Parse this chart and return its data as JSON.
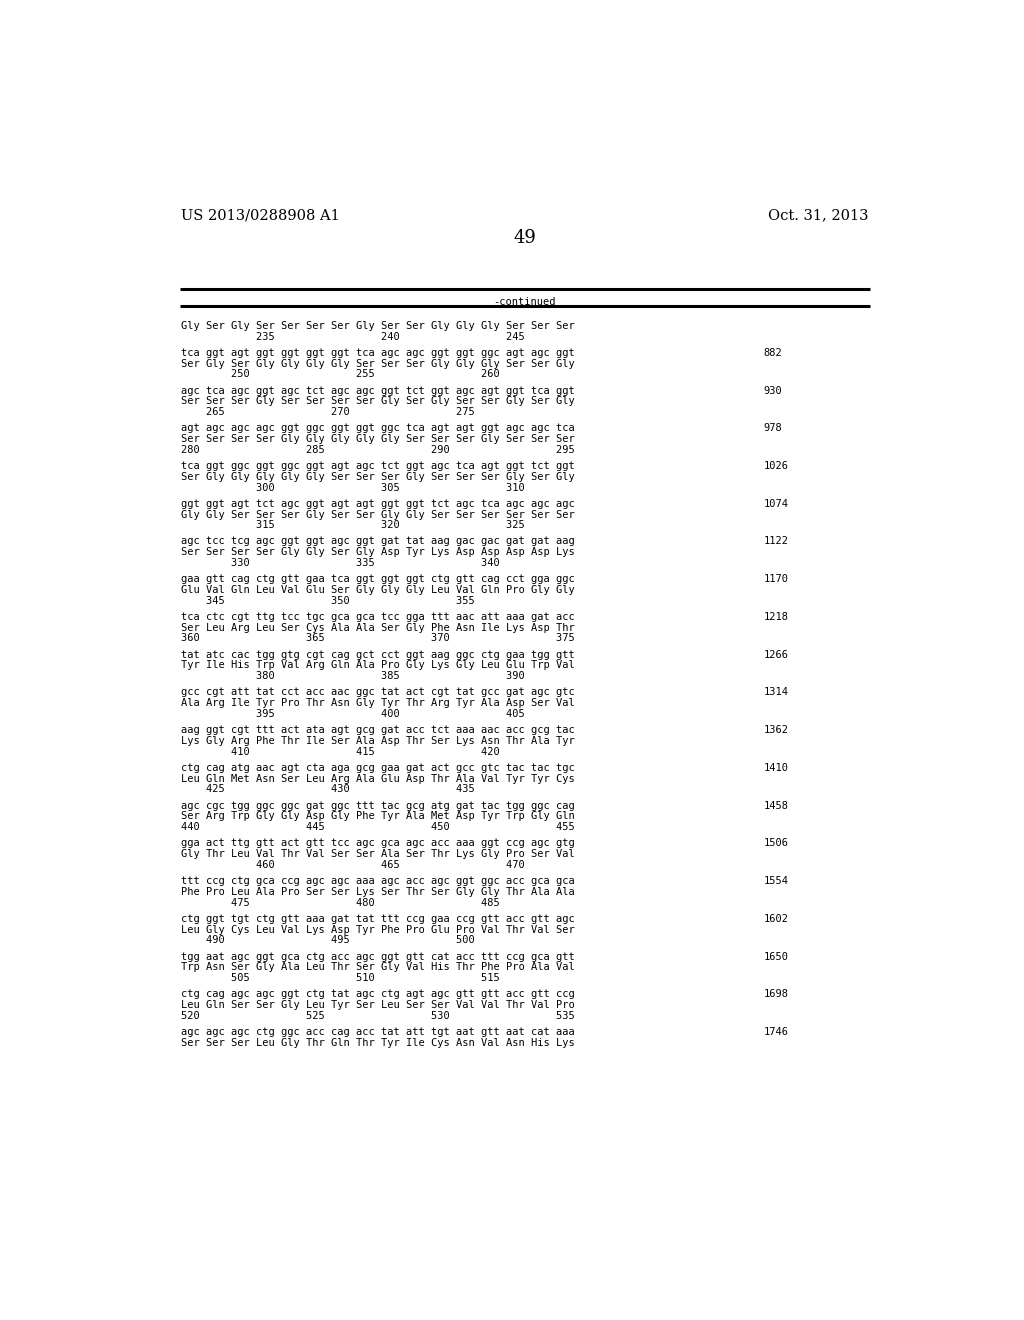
{
  "page_number": "49",
  "left_header": "US 2013/0288908 A1",
  "right_header": "Oct. 31, 2013",
  "continued_label": "-continued",
  "background_color": "#ffffff",
  "text_color": "#000000",
  "font_size_header": 10.5,
  "font_size_page": 13,
  "font_size_body": 7.5,
  "blocks": [
    {
      "line1": "Gly Ser Gly Ser Ser Ser Ser Gly Ser Ser Gly Gly Gly Ser Ser Ser",
      "line2": "            235                 240                 245",
      "number": ""
    },
    {
      "line1": "tca ggt agt ggt ggt ggt ggt tca agc agc ggt ggt ggc agt agc ggt",
      "line2": "Ser Gly Ser Gly Gly Gly Gly Ser Ser Ser Gly Gly Gly Ser Ser Gly",
      "line3": "        250                 255                 260",
      "number": "882"
    },
    {
      "line1": "agc tca agc ggt agc tct agc agc ggt tct ggt agc agt ggt tca ggt",
      "line2": "Ser Ser Ser Gly Ser Ser Ser Ser Gly Ser Gly Ser Ser Gly Ser Gly",
      "line3": "    265                 270                 275",
      "number": "930"
    },
    {
      "line1": "agt agc agc agc ggt ggc ggt ggt ggc tca agt agt ggt agc agc tca",
      "line2": "Ser Ser Ser Ser Gly Gly Gly Gly Gly Ser Ser Ser Gly Ser Ser Ser",
      "line3": "280                 285                 290                 295",
      "number": "978"
    },
    {
      "line1": "tca ggt ggc ggt ggc ggt agt agc tct ggt agc tca agt ggt tct ggt",
      "line2": "Ser Gly Gly Gly Gly Gly Ser Ser Ser Gly Ser Ser Ser Gly Ser Gly",
      "line3": "            300                 305                 310",
      "number": "1026"
    },
    {
      "line1": "ggt ggt agt tct agc ggt agt agt ggt ggt tct agc tca agc agc agc",
      "line2": "Gly Gly Ser Ser Ser Gly Ser Ser Gly Gly Ser Ser Ser Ser Ser Ser",
      "line3": "            315                 320                 325",
      "number": "1074"
    },
    {
      "line1": "agc tcc tcg agc ggt ggt agc ggt gat tat aag gac gac gat gat aag",
      "line2": "Ser Ser Ser Ser Gly Gly Ser Gly Asp Tyr Lys Asp Asp Asp Asp Lys",
      "line3": "        330                 335                 340",
      "number": "1122"
    },
    {
      "line1": "gaa gtt cag ctg gtt gaa tca ggt ggt ggt ctg gtt cag cct gga ggc",
      "line2": "Glu Val Gln Leu Val Glu Ser Gly Gly Gly Leu Val Gln Pro Gly Gly",
      "line3": "    345                 350                 355",
      "number": "1170"
    },
    {
      "line1": "tca ctc cgt ttg tcc tgc gca gca tcc gga ttt aac att aaa gat acc",
      "line2": "Ser Leu Arg Leu Ser Cys Ala Ala Ser Gly Phe Asn Ile Lys Asp Thr",
      "line3": "360                 365                 370                 375",
      "number": "1218"
    },
    {
      "line1": "tat atc cac tgg gtg cgt cag gct cct ggt aag ggc ctg gaa tgg gtt",
      "line2": "Tyr Ile His Trp Val Arg Gln Ala Pro Gly Lys Gly Leu Glu Trp Val",
      "line3": "            380                 385                 390",
      "number": "1266"
    },
    {
      "line1": "gcc cgt att tat cct acc aac ggc tat act cgt tat gcc gat agc gtc",
      "line2": "Ala Arg Ile Tyr Pro Thr Asn Gly Tyr Thr Arg Tyr Ala Asp Ser Val",
      "line3": "            395                 400                 405",
      "number": "1314"
    },
    {
      "line1": "aag ggt cgt ttt act ata agt gcg gat acc tct aaa aac acc gcg tac",
      "line2": "Lys Gly Arg Phe Thr Ile Ser Ala Asp Thr Ser Lys Asn Thr Ala Tyr",
      "line3": "        410                 415                 420",
      "number": "1362"
    },
    {
      "line1": "ctg cag atg aac agt cta aga gcg gaa gat act gcc gtc tac tac tgc",
      "line2": "Leu Gln Met Asn Ser Leu Arg Ala Glu Asp Thr Ala Val Tyr Tyr Cys",
      "line3": "    425                 430                 435",
      "number": "1410"
    },
    {
      "line1": "agc cgc tgg ggc ggc gat ggc ttt tac gcg atg gat tac tgg ggc cag",
      "line2": "Ser Arg Trp Gly Gly Asp Gly Phe Tyr Ala Met Asp Tyr Trp Gly Gln",
      "line3": "440                 445                 450                 455",
      "number": "1458"
    },
    {
      "line1": "gga act ttg gtt act gtt tcc agc gca agc acc aaa ggt ccg agc gtg",
      "line2": "Gly Thr Leu Val Thr Val Ser Ser Ala Ser Thr Lys Gly Pro Ser Val",
      "line3": "            460                 465                 470",
      "number": "1506"
    },
    {
      "line1": "ttt ccg ctg gca ccg agc agc aaa agc acc agc ggt ggc acc gca gca",
      "line2": "Phe Pro Leu Ala Pro Ser Ser Lys Ser Thr Ser Gly Gly Thr Ala Ala",
      "line3": "        475                 480                 485",
      "number": "1554"
    },
    {
      "line1": "ctg ggt tgt ctg gtt aaa gat tat ttt ccg gaa ccg gtt acc gtt agc",
      "line2": "Leu Gly Cys Leu Val Lys Asp Tyr Phe Pro Glu Pro Val Thr Val Ser",
      "line3": "    490                 495                 500",
      "number": "1602"
    },
    {
      "line1": "tgg aat agc ggt gca ctg acc agc ggt gtt cat acc ttt ccg gca gtt",
      "line2": "Trp Asn Ser Gly Ala Leu Thr Ser Gly Val His Thr Phe Pro Ala Val",
      "line3": "        505                 510                 515",
      "number": "1650"
    },
    {
      "line1": "ctg cag agc agc ggt ctg tat agc ctg agt agc gtt gtt acc gtt ccg",
      "line2": "Leu Gln Ser Ser Gly Leu Tyr Ser Leu Ser Ser Val Val Thr Val Pro",
      "line3": "520                 525                 530                 535",
      "number": "1698"
    },
    {
      "line1": "agc agc agc ctg ggc acc cag acc tat att tgt aat gtt aat cat aaa",
      "line2": "Ser Ser Ser Leu Gly Thr Gln Thr Tyr Ile Cys Asn Val Asn His Lys",
      "line3": "",
      "number": "1746"
    }
  ]
}
